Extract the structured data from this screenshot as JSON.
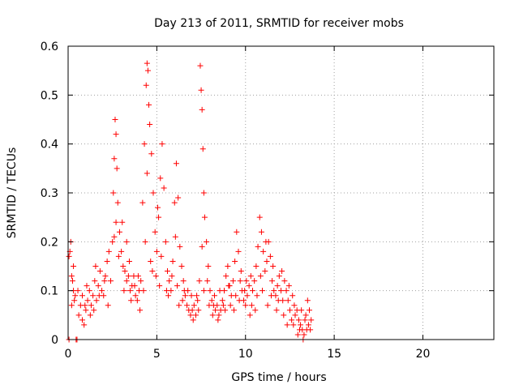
{
  "chart_data": {
    "type": "scatter",
    "title": "Day 213 of 2011, SRMTID for receiver mobs",
    "xlabel": "GPS time / hours",
    "ylabel": "SRMTID / TECUs",
    "xlim": [
      0,
      24
    ],
    "ylim": [
      0,
      0.6
    ],
    "xticks": [
      "0",
      "5",
      "10",
      "15",
      "20"
    ],
    "yticks": [
      "0",
      "0.1",
      "0.2",
      "0.3",
      "0.4",
      "0.5",
      "0.6"
    ],
    "grid": true,
    "marker": "plus",
    "color": "#ff0000",
    "series": [
      {
        "points": [
          [
            0.05,
            0.0
          ],
          [
            0.1,
            0.18
          ],
          [
            0.15,
            0.2
          ],
          [
            0.2,
            0.13
          ],
          [
            0.25,
            0.12
          ],
          [
            0.3,
            0.1
          ],
          [
            0.35,
            0.08
          ],
          [
            0.4,
            0.09
          ],
          [
            0.45,
            0.0
          ],
          [
            0.5,
            0.0
          ],
          [
            0.6,
            0.05
          ],
          [
            0.7,
            0.07
          ],
          [
            0.8,
            0.04
          ],
          [
            0.9,
            0.03
          ],
          [
            1.0,
            0.06
          ],
          [
            1.1,
            0.08
          ],
          [
            1.2,
            0.1
          ],
          [
            1.3,
            0.07
          ],
          [
            1.4,
            0.09
          ],
          [
            1.5,
            0.12
          ],
          [
            1.6,
            0.08
          ],
          [
            1.7,
            0.11
          ],
          [
            1.8,
            0.14
          ],
          [
            1.9,
            0.1
          ],
          [
            2.0,
            0.09
          ],
          [
            2.1,
            0.13
          ],
          [
            2.2,
            0.16
          ],
          [
            2.3,
            0.18
          ],
          [
            2.4,
            0.12
          ],
          [
            2.5,
            0.2
          ],
          [
            2.55,
            0.3
          ],
          [
            2.6,
            0.37
          ],
          [
            2.65,
            0.45
          ],
          [
            2.7,
            0.42
          ],
          [
            2.75,
            0.35
          ],
          [
            2.8,
            0.28
          ],
          [
            2.9,
            0.22
          ],
          [
            3.0,
            0.18
          ],
          [
            3.1,
            0.15
          ],
          [
            3.2,
            0.14
          ],
          [
            3.3,
            0.12
          ],
          [
            3.4,
            0.13
          ],
          [
            3.5,
            0.1
          ],
          [
            3.6,
            0.11
          ],
          [
            3.7,
            0.13
          ],
          [
            3.8,
            0.09
          ],
          [
            3.9,
            0.08
          ],
          [
            4.0,
            0.1
          ],
          [
            4.1,
            0.12
          ],
          [
            4.2,
            0.28
          ],
          [
            4.3,
            0.4
          ],
          [
            4.4,
            0.52
          ],
          [
            4.45,
            0.565
          ],
          [
            4.5,
            0.55
          ],
          [
            4.55,
            0.48
          ],
          [
            4.6,
            0.44
          ],
          [
            4.7,
            0.38
          ],
          [
            4.8,
            0.3
          ],
          [
            4.9,
            0.22
          ],
          [
            5.0,
            0.18
          ],
          [
            5.1,
            0.25
          ],
          [
            5.2,
            0.33
          ],
          [
            5.3,
            0.4
          ],
          [
            5.4,
            0.31
          ],
          [
            5.5,
            0.2
          ],
          [
            5.6,
            0.14
          ],
          [
            5.7,
            0.12
          ],
          [
            5.8,
            0.1
          ],
          [
            5.9,
            0.16
          ],
          [
            6.0,
            0.28
          ],
          [
            6.1,
            0.36
          ],
          [
            6.2,
            0.29
          ],
          [
            6.3,
            0.19
          ],
          [
            6.4,
            0.15
          ],
          [
            6.5,
            0.12
          ],
          [
            6.6,
            0.09
          ],
          [
            6.7,
            0.07
          ],
          [
            6.8,
            0.06
          ],
          [
            6.9,
            0.05
          ],
          [
            7.0,
            0.06
          ],
          [
            7.1,
            0.07
          ],
          [
            7.2,
            0.05
          ],
          [
            7.3,
            0.08
          ],
          [
            7.4,
            0.12
          ],
          [
            7.45,
            0.56
          ],
          [
            7.5,
            0.51
          ],
          [
            7.55,
            0.47
          ],
          [
            7.6,
            0.39
          ],
          [
            7.65,
            0.3
          ],
          [
            7.7,
            0.25
          ],
          [
            7.8,
            0.2
          ],
          [
            7.9,
            0.15
          ],
          [
            8.0,
            0.1
          ],
          [
            8.1,
            0.08
          ],
          [
            8.2,
            0.07
          ],
          [
            8.3,
            0.06
          ],
          [
            8.4,
            0.07
          ],
          [
            8.5,
            0.05
          ],
          [
            8.6,
            0.06
          ],
          [
            8.7,
            0.08
          ],
          [
            8.8,
            0.1
          ],
          [
            8.9,
            0.13
          ],
          [
            9.0,
            0.15
          ],
          [
            9.1,
            0.11
          ],
          [
            9.2,
            0.09
          ],
          [
            9.3,
            0.12
          ],
          [
            9.4,
            0.16
          ],
          [
            9.5,
            0.22
          ],
          [
            9.6,
            0.18
          ],
          [
            9.7,
            0.12
          ],
          [
            9.8,
            0.1
          ],
          [
            9.9,
            0.08
          ],
          [
            10.0,
            0.07
          ],
          [
            10.1,
            0.09
          ],
          [
            10.2,
            0.11
          ],
          [
            10.3,
            0.13
          ],
          [
            10.4,
            0.1
          ],
          [
            10.5,
            0.12
          ],
          [
            10.6,
            0.15
          ],
          [
            10.7,
            0.19
          ],
          [
            10.8,
            0.25
          ],
          [
            10.9,
            0.22
          ],
          [
            11.0,
            0.18
          ],
          [
            11.1,
            0.14
          ],
          [
            11.2,
            0.16
          ],
          [
            11.3,
            0.2
          ],
          [
            11.4,
            0.17
          ],
          [
            11.5,
            0.12
          ],
          [
            11.6,
            0.1
          ],
          [
            11.7,
            0.09
          ],
          [
            11.8,
            0.11
          ],
          [
            11.9,
            0.13
          ],
          [
            12.0,
            0.1
          ],
          [
            12.1,
            0.08
          ],
          [
            12.2,
            0.12
          ],
          [
            12.3,
            0.1
          ],
          [
            12.4,
            0.08
          ],
          [
            12.5,
            0.06
          ],
          [
            12.6,
            0.04
          ],
          [
            12.7,
            0.03
          ],
          [
            12.8,
            0.05
          ],
          [
            12.9,
            0.06
          ],
          [
            13.0,
            0.04
          ],
          [
            13.1,
            0.03
          ],
          [
            13.2,
            0.02
          ],
          [
            13.3,
            0.01
          ],
          [
            13.4,
            0.05
          ],
          [
            13.5,
            0.08
          ],
          [
            13.6,
            0.06
          ],
          [
            13.7,
            0.04
          ],
          [
            0.3,
            0.15
          ],
          [
            0.8,
            0.09
          ],
          [
            1.25,
            0.05
          ],
          [
            1.75,
            0.09
          ],
          [
            2.25,
            0.07
          ],
          [
            2.85,
            0.17
          ],
          [
            3.15,
            0.1
          ],
          [
            3.45,
            0.16
          ],
          [
            3.75,
            0.11
          ],
          [
            4.05,
            0.06
          ],
          [
            4.35,
            0.2
          ],
          [
            4.65,
            0.16
          ],
          [
            4.95,
            0.13
          ],
          [
            5.25,
            0.17
          ],
          [
            5.55,
            0.1
          ],
          [
            5.85,
            0.13
          ],
          [
            6.15,
            0.11
          ],
          [
            6.45,
            0.08
          ],
          [
            6.75,
            0.1
          ],
          [
            7.05,
            0.04
          ],
          [
            7.35,
            0.06
          ],
          [
            7.65,
            0.1
          ],
          [
            7.95,
            0.07
          ],
          [
            8.25,
            0.09
          ],
          [
            8.55,
            0.1
          ],
          [
            8.85,
            0.06
          ],
          [
            9.15,
            0.07
          ],
          [
            9.45,
            0.09
          ],
          [
            9.75,
            0.14
          ],
          [
            10.05,
            0.12
          ],
          [
            10.35,
            0.07
          ],
          [
            10.65,
            0.09
          ],
          [
            10.95,
            0.1
          ],
          [
            11.25,
            0.07
          ],
          [
            11.55,
            0.15
          ],
          [
            11.85,
            0.08
          ],
          [
            12.15,
            0.05
          ],
          [
            12.45,
            0.11
          ],
          [
            12.75,
            0.07
          ],
          [
            13.05,
            0.02
          ],
          [
            13.25,
            0.0
          ],
          [
            13.35,
            0.04
          ],
          [
            13.45,
            0.02
          ],
          [
            13.55,
            0.03
          ],
          [
            2.7,
            0.24
          ],
          [
            3.3,
            0.2
          ],
          [
            4.45,
            0.34
          ],
          [
            5.05,
            0.27
          ],
          [
            6.05,
            0.21
          ],
          [
            7.55,
            0.19
          ],
          [
            1.05,
            0.11
          ],
          [
            1.55,
            0.15
          ],
          [
            2.05,
            0.12
          ],
          [
            2.6,
            0.21
          ],
          [
            3.05,
            0.24
          ],
          [
            3.55,
            0.08
          ],
          [
            3.95,
            0.13
          ],
          [
            4.25,
            0.1
          ],
          [
            4.75,
            0.14
          ],
          [
            5.15,
            0.11
          ],
          [
            5.65,
            0.09
          ],
          [
            6.25,
            0.07
          ],
          [
            6.55,
            0.1
          ],
          [
            6.95,
            0.09
          ],
          [
            7.25,
            0.09
          ],
          [
            7.85,
            0.12
          ],
          [
            8.15,
            0.05
          ],
          [
            8.45,
            0.04
          ],
          [
            8.75,
            0.07
          ],
          [
            9.05,
            0.11
          ],
          [
            9.35,
            0.06
          ],
          [
            9.65,
            0.08
          ],
          [
            9.95,
            0.1
          ],
          [
            10.25,
            0.05
          ],
          [
            10.55,
            0.06
          ],
          [
            10.85,
            0.13
          ],
          [
            11.15,
            0.2
          ],
          [
            11.45,
            0.09
          ],
          [
            11.75,
            0.06
          ],
          [
            12.05,
            0.14
          ],
          [
            12.35,
            0.03
          ],
          [
            12.65,
            0.09
          ],
          [
            12.95,
            0.01
          ],
          [
            13.15,
            0.06
          ],
          [
            13.65,
            0.02
          ],
          [
            0.05,
            0.17
          ],
          [
            0.2,
            0.07
          ],
          [
            0.55,
            0.1
          ],
          [
            0.95,
            0.07
          ],
          [
            1.45,
            0.06
          ]
        ]
      }
    ]
  }
}
